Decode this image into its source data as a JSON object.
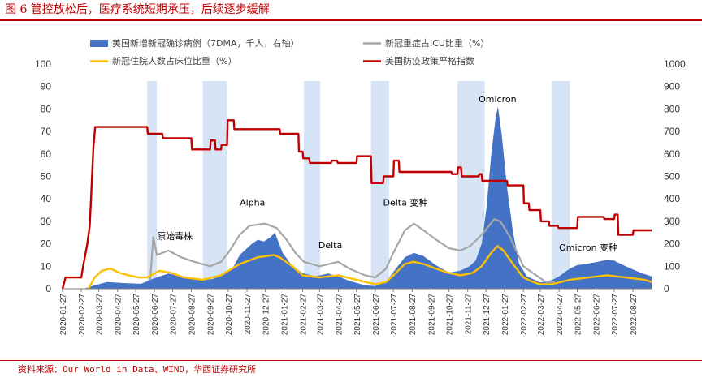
{
  "header": {
    "title": "图 6 管控放松后，医疗系统短期承压，后续逐步缓解"
  },
  "footer": {
    "source": "资料来源：Our World in Data、WIND，华西证券研究所"
  },
  "chart_data": {
    "type": "combo",
    "title": "图 6 管控放松后，医疗系统短期承压，后续逐步缓解",
    "source": "资料来源：Our World in Data、WIND，华西证券研究所",
    "left_axis": {
      "min": 0,
      "max": 100,
      "step": 10
    },
    "right_axis": {
      "min": 0,
      "max": 1000,
      "step": 100
    },
    "x_axis": {
      "start": "2020-01-27",
      "end": "2022-09-27",
      "tick_labels": [
        "2020-01-27",
        "2020-02-27",
        "2020-03-27",
        "2020-04-27",
        "2020-05-27",
        "2020-06-27",
        "2020-07-27",
        "2020-08-27",
        "2020-09-27",
        "2020-10-27",
        "2020-11-27",
        "2020-12-27",
        "2021-01-27",
        "2021-02-27",
        "2021-03-27",
        "2021-04-27",
        "2021-05-27",
        "2021-06-27",
        "2021-07-27",
        "2021-08-27",
        "2021-09-27",
        "2021-10-27",
        "2021-11-27",
        "2021-12-27",
        "2022-01-27",
        "2022-02-27",
        "2022-03-27",
        "2022-04-27",
        "2022-05-27",
        "2022-06-27",
        "2022-07-27",
        "2022-08-27"
      ]
    },
    "legend": [
      {
        "label": "美国新增新冠确诊病例（7DMA，千人，右轴）",
        "color": "#4472c4",
        "kind": "area"
      },
      {
        "label": "新冠重症占ICU比重（%）",
        "color": "#a6a6a6",
        "kind": "line"
      },
      {
        "label": "新冠住院人数占床位比重（%）",
        "color": "#ffc000",
        "kind": "line"
      },
      {
        "label": "美国防疫政策严格指数",
        "color": "#c00000",
        "kind": "line"
      }
    ],
    "shaded_periods": [
      [
        "2020-06-15",
        "2020-07-01"
      ],
      [
        "2020-09-15",
        "2020-10-25"
      ],
      [
        "2021-03-01",
        "2021-03-28"
      ],
      [
        "2021-06-20",
        "2021-07-20"
      ],
      [
        "2021-11-10",
        "2021-12-25"
      ],
      [
        "2022-04-15",
        "2022-05-15"
      ]
    ],
    "annotations": [
      {
        "text": "原始毒株",
        "date": "2020-07-01",
        "value": 22
      },
      {
        "text": "Alpha",
        "date": "2020-11-15",
        "value": 37
      },
      {
        "text": "Delta",
        "date": "2021-03-25",
        "value": 18
      },
      {
        "text": "Delta 变种",
        "date": "2021-07-10",
        "value": 37
      },
      {
        "text": "Omicron",
        "date": "2021-12-15",
        "value": 83
      },
      {
        "text": "Omicron 变种",
        "date": "2022-04-27",
        "value": 17
      }
    ],
    "series": [
      {
        "name": "美国新增新冠确诊病例（7DMA，千人，右轴）",
        "axis": "right",
        "points": [
          [
            "2020-01-27",
            0
          ],
          [
            "2020-03-05",
            2
          ],
          [
            "2020-03-20",
            15
          ],
          [
            "2020-04-10",
            30
          ],
          [
            "2020-05-10",
            25
          ],
          [
            "2020-06-05",
            22
          ],
          [
            "2020-06-25",
            45
          ],
          [
            "2020-07-20",
            68
          ],
          [
            "2020-08-15",
            52
          ],
          [
            "2020-09-10",
            38
          ],
          [
            "2020-10-01",
            43
          ],
          [
            "2020-10-20",
            62
          ],
          [
            "2020-11-05",
            100
          ],
          [
            "2020-11-15",
            150
          ],
          [
            "2020-11-25",
            175
          ],
          [
            "2020-12-05",
            200
          ],
          [
            "2020-12-15",
            218
          ],
          [
            "2020-12-25",
            210
          ],
          [
            "2021-01-05",
            230
          ],
          [
            "2021-01-12",
            250
          ],
          [
            "2021-01-25",
            160
          ],
          [
            "2021-02-10",
            100
          ],
          [
            "2021-02-27",
            70
          ],
          [
            "2021-03-20",
            55
          ],
          [
            "2021-04-10",
            68
          ],
          [
            "2021-04-27",
            55
          ],
          [
            "2021-05-15",
            35
          ],
          [
            "2021-06-10",
            15
          ],
          [
            "2021-06-27",
            12
          ],
          [
            "2021-07-15",
            30
          ],
          [
            "2021-07-27",
            75
          ],
          [
            "2021-08-15",
            140
          ],
          [
            "2021-08-30",
            160
          ],
          [
            "2021-09-15",
            145
          ],
          [
            "2021-10-05",
            105
          ],
          [
            "2021-10-27",
            72
          ],
          [
            "2021-11-15",
            80
          ],
          [
            "2021-11-30",
            100
          ],
          [
            "2021-12-10",
            125
          ],
          [
            "2021-12-20",
            200
          ],
          [
            "2021-12-28",
            360
          ],
          [
            "2022-01-05",
            600
          ],
          [
            "2022-01-12",
            760
          ],
          [
            "2022-01-16",
            810
          ],
          [
            "2022-01-22",
            690
          ],
          [
            "2022-01-31",
            450
          ],
          [
            "2022-02-10",
            250
          ],
          [
            "2022-02-20",
            110
          ],
          [
            "2022-03-05",
            55
          ],
          [
            "2022-03-27",
            28
          ],
          [
            "2022-04-15",
            38
          ],
          [
            "2022-04-27",
            55
          ],
          [
            "2022-05-15",
            90
          ],
          [
            "2022-05-27",
            105
          ],
          [
            "2022-06-10",
            110
          ],
          [
            "2022-06-27",
            118
          ],
          [
            "2022-07-15",
            128
          ],
          [
            "2022-07-27",
            125
          ],
          [
            "2022-08-15",
            100
          ],
          [
            "2022-09-10",
            70
          ],
          [
            "2022-09-27",
            55
          ]
        ]
      },
      {
        "name": "新冠重症占ICU比重（%）",
        "axis": "left",
        "points": [
          [
            "2020-06-20",
            4
          ],
          [
            "2020-06-25",
            23
          ],
          [
            "2020-07-01",
            15
          ],
          [
            "2020-07-20",
            17
          ],
          [
            "2020-08-10",
            14
          ],
          [
            "2020-09-01",
            12
          ],
          [
            "2020-09-27",
            10
          ],
          [
            "2020-10-15",
            12
          ],
          [
            "2020-10-27",
            16
          ],
          [
            "2020-11-15",
            24
          ],
          [
            "2020-12-01",
            28
          ],
          [
            "2020-12-27",
            29
          ],
          [
            "2021-01-15",
            27
          ],
          [
            "2021-01-31",
            22
          ],
          [
            "2021-02-15",
            16
          ],
          [
            "2021-03-01",
            12
          ],
          [
            "2021-03-27",
            10
          ],
          [
            "2021-04-27",
            12
          ],
          [
            "2021-05-15",
            9
          ],
          [
            "2021-06-10",
            6
          ],
          [
            "2021-06-27",
            5
          ],
          [
            "2021-07-15",
            9
          ],
          [
            "2021-07-27",
            16
          ],
          [
            "2021-08-15",
            26
          ],
          [
            "2021-08-30",
            29
          ],
          [
            "2021-09-15",
            26
          ],
          [
            "2021-10-05",
            22
          ],
          [
            "2021-10-27",
            18
          ],
          [
            "2021-11-15",
            17
          ],
          [
            "2021-12-01",
            19
          ],
          [
            "2021-12-20",
            24
          ],
          [
            "2022-01-10",
            31
          ],
          [
            "2022-01-20",
            30
          ],
          [
            "2022-02-05",
            23
          ],
          [
            "2022-02-27",
            10
          ],
          [
            "2022-03-20",
            6
          ],
          [
            "2022-04-05",
            3
          ],
          [
            "2022-04-20",
            3
          ]
        ]
      },
      {
        "name": "新冠住院人数占床位比重（%）",
        "axis": "left",
        "points": [
          [
            "2020-03-10",
            0
          ],
          [
            "2020-03-20",
            5
          ],
          [
            "2020-04-01",
            8
          ],
          [
            "2020-04-15",
            9
          ],
          [
            "2020-05-01",
            7
          ],
          [
            "2020-05-15",
            6
          ],
          [
            "2020-06-01",
            5
          ],
          [
            "2020-06-15",
            5
          ],
          [
            "2020-07-05",
            8
          ],
          [
            "2020-07-25",
            7
          ],
          [
            "2020-08-15",
            5
          ],
          [
            "2020-09-15",
            4
          ],
          [
            "2020-10-15",
            6
          ],
          [
            "2020-11-15",
            11
          ],
          [
            "2020-12-15",
            14
          ],
          [
            "2021-01-10",
            15
          ],
          [
            "2021-01-20",
            14
          ],
          [
            "2021-02-10",
            10
          ],
          [
            "2021-02-27",
            6
          ],
          [
            "2021-03-27",
            5
          ],
          [
            "2021-04-27",
            6
          ],
          [
            "2021-05-27",
            4
          ],
          [
            "2021-06-27",
            2
          ],
          [
            "2021-07-15",
            3
          ],
          [
            "2021-07-27",
            6
          ],
          [
            "2021-08-15",
            11
          ],
          [
            "2021-08-30",
            12
          ],
          [
            "2021-09-15",
            11
          ],
          [
            "2021-10-05",
            9
          ],
          [
            "2021-10-27",
            7
          ],
          [
            "2021-11-15",
            6
          ],
          [
            "2021-12-05",
            7
          ],
          [
            "2021-12-20",
            10
          ],
          [
            "2022-01-05",
            16
          ],
          [
            "2022-01-15",
            19
          ],
          [
            "2022-01-25",
            17
          ],
          [
            "2022-02-10",
            11
          ],
          [
            "2022-02-27",
            5
          ],
          [
            "2022-03-15",
            3
          ],
          [
            "2022-03-27",
            2
          ],
          [
            "2022-04-15",
            2
          ],
          [
            "2022-05-15",
            4
          ],
          [
            "2022-06-15",
            5
          ],
          [
            "2022-07-15",
            6
          ],
          [
            "2022-08-15",
            5
          ],
          [
            "2022-09-15",
            4
          ],
          [
            "2022-09-27",
            3
          ]
        ]
      },
      {
        "name": "美国防疫政策严格指数",
        "axis": "left",
        "points": [
          [
            "2020-01-27",
            0
          ],
          [
            "2020-02-01",
            5
          ],
          [
            "2020-02-27",
            5
          ],
          [
            "2020-03-01",
            10
          ],
          [
            "2020-03-08",
            20
          ],
          [
            "2020-03-12",
            28
          ],
          [
            "2020-03-15",
            45
          ],
          [
            "2020-03-18",
            63
          ],
          [
            "2020-03-21",
            72
          ],
          [
            "2020-06-15",
            72
          ],
          [
            "2020-06-16",
            69
          ],
          [
            "2020-07-10",
            69
          ],
          [
            "2020-07-11",
            67
          ],
          [
            "2020-08-27",
            67
          ],
          [
            "2020-08-28",
            62
          ],
          [
            "2020-09-27",
            62
          ],
          [
            "2020-09-28",
            66
          ],
          [
            "2020-10-05",
            66
          ],
          [
            "2020-10-06",
            62
          ],
          [
            "2020-10-15",
            62
          ],
          [
            "2020-10-16",
            64
          ],
          [
            "2020-10-25",
            64
          ],
          [
            "2020-10-26",
            75
          ],
          [
            "2020-11-05",
            75
          ],
          [
            "2020-11-06",
            71
          ],
          [
            "2021-01-20",
            71
          ],
          [
            "2021-01-21",
            69
          ],
          [
            "2021-02-20",
            69
          ],
          [
            "2021-02-21",
            61
          ],
          [
            "2021-02-27",
            61
          ],
          [
            "2021-02-28",
            58
          ],
          [
            "2021-03-10",
            58
          ],
          [
            "2021-03-11",
            56
          ],
          [
            "2021-04-15",
            56
          ],
          [
            "2021-04-16",
            57
          ],
          [
            "2021-04-25",
            57
          ],
          [
            "2021-04-26",
            56
          ],
          [
            "2021-05-27",
            56
          ],
          [
            "2021-05-28",
            59
          ],
          [
            "2021-06-20",
            59
          ],
          [
            "2021-06-21",
            47
          ],
          [
            "2021-07-10",
            47
          ],
          [
            "2021-07-11",
            50
          ],
          [
            "2021-07-27",
            50
          ],
          [
            "2021-07-28",
            57
          ],
          [
            "2021-08-05",
            57
          ],
          [
            "2021-08-06",
            52
          ],
          [
            "2021-10-31",
            52
          ],
          [
            "2021-11-01",
            51
          ],
          [
            "2021-11-10",
            51
          ],
          [
            "2021-11-11",
            54
          ],
          [
            "2021-11-16",
            54
          ],
          [
            "2021-11-17",
            50
          ],
          [
            "2021-12-15",
            50
          ],
          [
            "2021-12-16",
            51
          ],
          [
            "2021-12-20",
            51
          ],
          [
            "2021-12-21",
            48
          ],
          [
            "2022-01-31",
            48
          ],
          [
            "2022-02-01",
            46
          ],
          [
            "2022-02-27",
            46
          ],
          [
            "2022-02-28",
            38
          ],
          [
            "2022-03-08",
            38
          ],
          [
            "2022-03-09",
            35
          ],
          [
            "2022-03-27",
            35
          ],
          [
            "2022-03-28",
            30
          ],
          [
            "2022-04-10",
            30
          ],
          [
            "2022-04-11",
            28
          ],
          [
            "2022-04-25",
            28
          ],
          [
            "2022-04-26",
            27
          ],
          [
            "2022-05-27",
            27
          ],
          [
            "2022-05-28",
            32
          ],
          [
            "2022-07-10",
            32
          ],
          [
            "2022-07-11",
            31
          ],
          [
            "2022-07-27",
            31
          ],
          [
            "2022-07-28",
            33
          ],
          [
            "2022-08-02",
            33
          ],
          [
            "2022-08-03",
            24
          ],
          [
            "2022-08-27",
            24
          ],
          [
            "2022-08-28",
            26
          ],
          [
            "2022-09-27",
            26
          ]
        ]
      }
    ]
  }
}
